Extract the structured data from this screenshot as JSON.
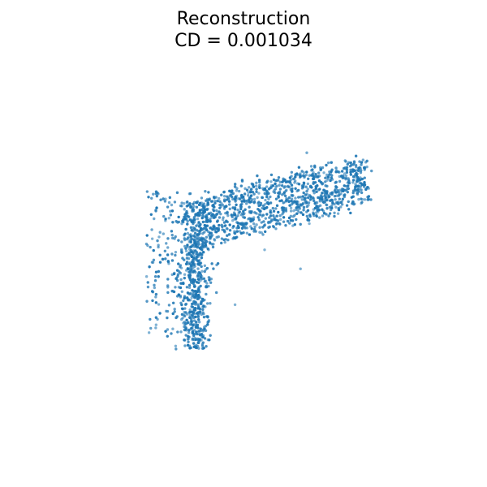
{
  "chart_data": {
    "type": "scatter",
    "title": "Reconstruction",
    "subtitle": "CD = 0.001034",
    "xlabel": "",
    "ylabel": "",
    "axes_visible": false,
    "grid": false,
    "series_color": "#1f77b4",
    "xlim": [
      -1,
      1
    ],
    "ylim": [
      -1,
      1
    ],
    "point_count": 1800,
    "points_description_note": ""
  }
}
